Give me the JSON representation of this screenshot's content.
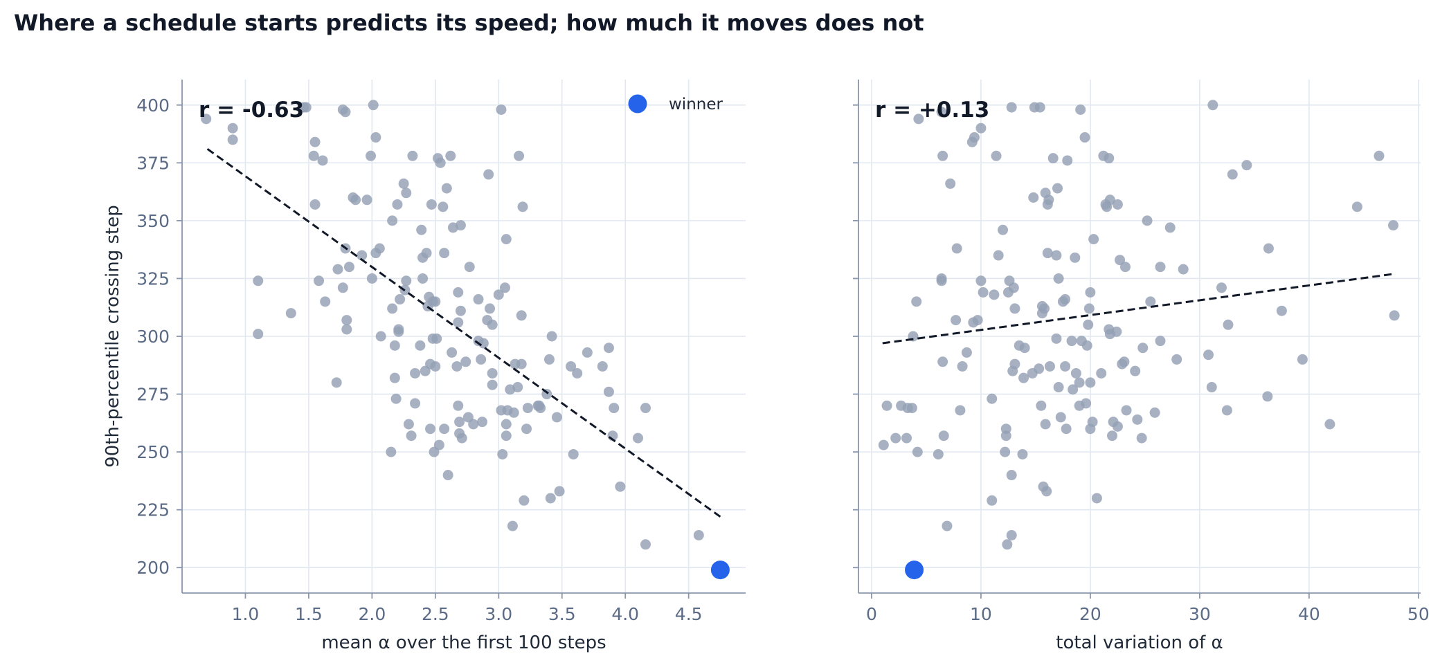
{
  "title": "Where a schedule starts predicts its speed; how much it moves does not",
  "colors": {
    "point": "#94a0b4",
    "winner": "#2563eb",
    "trend": "#111827",
    "grid": "#e2e8f0",
    "axis": "#8a96ac"
  },
  "legend": {
    "label": "winner",
    "placement": "upper-right of left panel"
  },
  "chart_data": [
    {
      "type": "scatter",
      "title": "",
      "xlabel": "mean α over the first 100 steps",
      "ylabel": "90th-percentile crossing step",
      "xlim": [
        0.5,
        4.95
      ],
      "ylim": [
        189,
        411
      ],
      "xticks": [
        1.0,
        1.5,
        2.0,
        2.5,
        3.0,
        3.5,
        4.0,
        4.5
      ],
      "xtick_labels": [
        "1.0",
        "1.5",
        "2.0",
        "2.5",
        "3.0",
        "3.5",
        "4.0",
        "4.5"
      ],
      "yticks": [
        200,
        225,
        250,
        275,
        300,
        325,
        350,
        375,
        400
      ],
      "ytick_labels": [
        "200",
        "225",
        "250",
        "275",
        "300",
        "325",
        "350",
        "375",
        "400"
      ],
      "grid": true,
      "annotation": "r = -0.63",
      "trend_line": {
        "x": [
          0.7,
          4.75
        ],
        "y": [
          381,
          222
        ]
      },
      "winner": {
        "x": 4.75,
        "y": 199
      },
      "points": [
        [
          0.69,
          394
        ],
        [
          0.9,
          390
        ],
        [
          0.9,
          385
        ],
        [
          1.1,
          324
        ],
        [
          1.1,
          301
        ],
        [
          1.36,
          310
        ],
        [
          1.46,
          399
        ],
        [
          1.48,
          399
        ],
        [
          1.54,
          378
        ],
        [
          1.55,
          384
        ],
        [
          1.55,
          357
        ],
        [
          1.58,
          324
        ],
        [
          1.61,
          376
        ],
        [
          1.63,
          315
        ],
        [
          1.72,
          280
        ],
        [
          1.73,
          329
        ],
        [
          1.77,
          398
        ],
        [
          1.77,
          321
        ],
        [
          1.79,
          397
        ],
        [
          1.79,
          338
        ],
        [
          1.8,
          307
        ],
        [
          1.8,
          303
        ],
        [
          1.82,
          330
        ],
        [
          1.85,
          360
        ],
        [
          1.87,
          359
        ],
        [
          1.92,
          335
        ],
        [
          1.96,
          359
        ],
        [
          1.99,
          378
        ],
        [
          2.0,
          325
        ],
        [
          2.01,
          400
        ],
        [
          2.03,
          386
        ],
        [
          2.03,
          336
        ],
        [
          2.06,
          338
        ],
        [
          2.07,
          300
        ],
        [
          2.15,
          250
        ],
        [
          2.16,
          350
        ],
        [
          2.16,
          312
        ],
        [
          2.18,
          296
        ],
        [
          2.18,
          282
        ],
        [
          2.19,
          273
        ],
        [
          2.2,
          357
        ],
        [
          2.21,
          303
        ],
        [
          2.21,
          302
        ],
        [
          2.22,
          316
        ],
        [
          2.25,
          366
        ],
        [
          2.26,
          320
        ],
        [
          2.27,
          324
        ],
        [
          2.27,
          362
        ],
        [
          2.29,
          262
        ],
        [
          2.31,
          257
        ],
        [
          2.32,
          378
        ],
        [
          2.34,
          271
        ],
        [
          2.34,
          284
        ],
        [
          2.38,
          296
        ],
        [
          2.39,
          346
        ],
        [
          2.4,
          325
        ],
        [
          2.4,
          334
        ],
        [
          2.42,
          285
        ],
        [
          2.43,
          336
        ],
        [
          2.44,
          313
        ],
        [
          2.45,
          317
        ],
        [
          2.46,
          260
        ],
        [
          2.46,
          288
        ],
        [
          2.47,
          357
        ],
        [
          2.48,
          315
        ],
        [
          2.48,
          299
        ],
        [
          2.49,
          250
        ],
        [
          2.5,
          315
        ],
        [
          2.5,
          287
        ],
        [
          2.51,
          299
        ],
        [
          2.52,
          377
        ],
        [
          2.53,
          253
        ],
        [
          2.54,
          375
        ],
        [
          2.56,
          356
        ],
        [
          2.57,
          336
        ],
        [
          2.57,
          260
        ],
        [
          2.59,
          364
        ],
        [
          2.6,
          240
        ],
        [
          2.62,
          378
        ],
        [
          2.63,
          293
        ],
        [
          2.64,
          347
        ],
        [
          2.67,
          287
        ],
        [
          2.68,
          306
        ],
        [
          2.68,
          319
        ],
        [
          2.68,
          270
        ],
        [
          2.69,
          263
        ],
        [
          2.69,
          258
        ],
        [
          2.7,
          311
        ],
        [
          2.7,
          348
        ],
        [
          2.71,
          256
        ],
        [
          2.74,
          289
        ],
        [
          2.76,
          265
        ],
        [
          2.77,
          330
        ],
        [
          2.8,
          262
        ],
        [
          2.84,
          298
        ],
        [
          2.84,
          316
        ],
        [
          2.86,
          290
        ],
        [
          2.87,
          263
        ],
        [
          2.88,
          297
        ],
        [
          2.91,
          307
        ],
        [
          2.92,
          370
        ],
        [
          2.93,
          312
        ],
        [
          2.95,
          305
        ],
        [
          2.95,
          279
        ],
        [
          2.95,
          284
        ],
        [
          3.0,
          318
        ],
        [
          3.02,
          398
        ],
        [
          3.02,
          268
        ],
        [
          3.03,
          249
        ],
        [
          3.05,
          321
        ],
        [
          3.06,
          342
        ],
        [
          3.06,
          257
        ],
        [
          3.06,
          262
        ],
        [
          3.07,
          268
        ],
        [
          3.09,
          277
        ],
        [
          3.11,
          218
        ],
        [
          3.12,
          267
        ],
        [
          3.13,
          288
        ],
        [
          3.15,
          278
        ],
        [
          3.16,
          378
        ],
        [
          3.18,
          288
        ],
        [
          3.18,
          309
        ],
        [
          3.19,
          356
        ],
        [
          3.2,
          229
        ],
        [
          3.22,
          260
        ],
        [
          3.23,
          269
        ],
        [
          3.31,
          270
        ],
        [
          3.32,
          270
        ],
        [
          3.33,
          269
        ],
        [
          3.38,
          275
        ],
        [
          3.4,
          290
        ],
        [
          3.41,
          230
        ],
        [
          3.42,
          300
        ],
        [
          3.46,
          265
        ],
        [
          3.48,
          233
        ],
        [
          3.57,
          287
        ],
        [
          3.59,
          249
        ],
        [
          3.62,
          284
        ],
        [
          3.7,
          293
        ],
        [
          3.82,
          287
        ],
        [
          3.87,
          295
        ],
        [
          3.87,
          276
        ],
        [
          3.9,
          257
        ],
        [
          3.91,
          269
        ],
        [
          3.96,
          235
        ],
        [
          4.1,
          256
        ],
        [
          4.16,
          269
        ],
        [
          4.16,
          210
        ],
        [
          4.58,
          214
        ]
      ]
    },
    {
      "type": "scatter",
      "title": "",
      "xlabel": "total variation of α",
      "ylabel": "",
      "xlim": [
        -1.2,
        50.2
      ],
      "ylim": [
        189,
        411
      ],
      "xticks": [
        0,
        10,
        20,
        30,
        40,
        50
      ],
      "xtick_labels": [
        "0",
        "10",
        "20",
        "30",
        "40",
        "50"
      ],
      "yticks": [
        200,
        225,
        250,
        275,
        300,
        325,
        350,
        375,
        400
      ],
      "grid": true,
      "annotation": "r = +0.13",
      "trend_line": {
        "x": [
          1.0,
          47.8
        ],
        "y": [
          297,
          327
        ]
      },
      "winner": {
        "x": 3.9,
        "y": 199
      },
      "points": [
        [
          1.1,
          253
        ],
        [
          1.4,
          270
        ],
        [
          2.2,
          256
        ],
        [
          2.7,
          270
        ],
        [
          3.2,
          256
        ],
        [
          3.3,
          269
        ],
        [
          3.7,
          269
        ],
        [
          3.8,
          300
        ],
        [
          4.1,
          315
        ],
        [
          4.2,
          250
        ],
        [
          4.3,
          394
        ],
        [
          6.1,
          249
        ],
        [
          6.4,
          397
        ],
        [
          6.4,
          325
        ],
        [
          6.4,
          324
        ],
        [
          6.5,
          378
        ],
        [
          6.5,
          289
        ],
        [
          6.6,
          257
        ],
        [
          6.9,
          218
        ],
        [
          7.2,
          366
        ],
        [
          7.7,
          307
        ],
        [
          7.8,
          338
        ],
        [
          8.1,
          268
        ],
        [
          8.3,
          287
        ],
        [
          8.7,
          293
        ],
        [
          9.2,
          384
        ],
        [
          9.3,
          306
        ],
        [
          9.4,
          386
        ],
        [
          9.7,
          307
        ],
        [
          10.0,
          390
        ],
        [
          10.0,
          324
        ],
        [
          10.2,
          319
        ],
        [
          11.0,
          229
        ],
        [
          11.0,
          273
        ],
        [
          11.2,
          318
        ],
        [
          11.4,
          378
        ],
        [
          11.6,
          335
        ],
        [
          12.0,
          346
        ],
        [
          12.2,
          250
        ],
        [
          12.3,
          257
        ],
        [
          12.3,
          260
        ],
        [
          12.4,
          210
        ],
        [
          12.5,
          319
        ],
        [
          12.6,
          324
        ],
        [
          12.8,
          399
        ],
        [
          12.8,
          214
        ],
        [
          12.8,
          240
        ],
        [
          12.9,
          285
        ],
        [
          13.0,
          321
        ],
        [
          13.1,
          288
        ],
        [
          13.1,
          312
        ],
        [
          13.5,
          296
        ],
        [
          13.8,
          249
        ],
        [
          13.9,
          282
        ],
        [
          14.0,
          295
        ],
        [
          14.7,
          284
        ],
        [
          14.8,
          360
        ],
        [
          14.9,
          399
        ],
        [
          15.3,
          286
        ],
        [
          15.4,
          399
        ],
        [
          15.5,
          270
        ],
        [
          15.6,
          310
        ],
        [
          15.6,
          313
        ],
        [
          15.7,
          235
        ],
        [
          15.8,
          312
        ],
        [
          15.9,
          362
        ],
        [
          15.9,
          262
        ],
        [
          16.0,
          233
        ],
        [
          16.1,
          336
        ],
        [
          16.1,
          357
        ],
        [
          16.2,
          359
        ],
        [
          16.3,
          287
        ],
        [
          16.6,
          377
        ],
        [
          16.9,
          335
        ],
        [
          16.9,
          299
        ],
        [
          17.0,
          364
        ],
        [
          17.1,
          325
        ],
        [
          17.1,
          278
        ],
        [
          17.3,
          265
        ],
        [
          17.5,
          315
        ],
        [
          17.7,
          316
        ],
        [
          17.7,
          287
        ],
        [
          17.8,
          260
        ],
        [
          17.9,
          376
        ],
        [
          18.3,
          298
        ],
        [
          18.4,
          277
        ],
        [
          18.6,
          334
        ],
        [
          18.7,
          284
        ],
        [
          19.0,
          280
        ],
        [
          19.0,
          270
        ],
        [
          19.1,
          398
        ],
        [
          19.2,
          298
        ],
        [
          19.5,
          386
        ],
        [
          19.6,
          271
        ],
        [
          19.7,
          296
        ],
        [
          19.8,
          305
        ],
        [
          19.9,
          312
        ],
        [
          20.0,
          260
        ],
        [
          20.0,
          280
        ],
        [
          20.0,
          319
        ],
        [
          20.2,
          263
        ],
        [
          20.3,
          342
        ],
        [
          20.6,
          230
        ],
        [
          21.0,
          284
        ],
        [
          21.2,
          378
        ],
        [
          21.4,
          357
        ],
        [
          21.5,
          356
        ],
        [
          21.7,
          377
        ],
        [
          21.7,
          303
        ],
        [
          21.8,
          301
        ],
        [
          21.8,
          359
        ],
        [
          22.0,
          257
        ],
        [
          22.1,
          263
        ],
        [
          22.4,
          302
        ],
        [
          22.5,
          261
        ],
        [
          22.5,
          357
        ],
        [
          22.7,
          333
        ],
        [
          22.9,
          288
        ],
        [
          23.1,
          289
        ],
        [
          23.2,
          330
        ],
        [
          23.3,
          268
        ],
        [
          24.1,
          285
        ],
        [
          24.3,
          264
        ],
        [
          24.7,
          256
        ],
        [
          24.8,
          295
        ],
        [
          25.2,
          350
        ],
        [
          25.5,
          315
        ],
        [
          25.9,
          267
        ],
        [
          26.4,
          298
        ],
        [
          26.4,
          330
        ],
        [
          27.3,
          347
        ],
        [
          27.9,
          290
        ],
        [
          28.5,
          329
        ],
        [
          30.8,
          292
        ],
        [
          31.1,
          278
        ],
        [
          31.2,
          400
        ],
        [
          32.0,
          321
        ],
        [
          32.5,
          268
        ],
        [
          32.6,
          305
        ],
        [
          33.0,
          370
        ],
        [
          34.3,
          374
        ],
        [
          36.2,
          274
        ],
        [
          36.3,
          338
        ],
        [
          37.5,
          311
        ],
        [
          39.4,
          290
        ],
        [
          41.9,
          262
        ],
        [
          44.4,
          356
        ],
        [
          46.4,
          378
        ],
        [
          47.7,
          348
        ],
        [
          47.8,
          309
        ]
      ]
    }
  ]
}
